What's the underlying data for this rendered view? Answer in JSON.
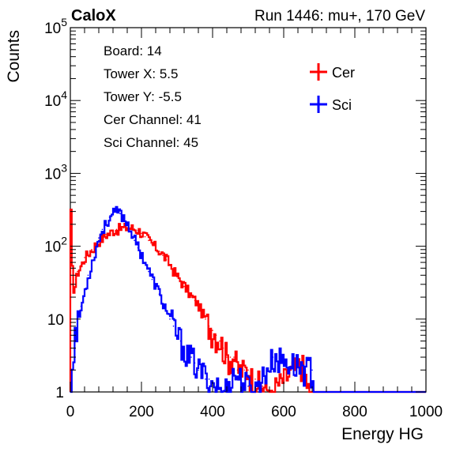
{
  "header": {
    "brand": "CaloX",
    "run_info": "Run 1446: mu+, 170 GeV"
  },
  "info_box": {
    "lines": [
      "Board: 14",
      "Tower X: 5.5",
      "Tower Y: -5.5",
      "Cer Channel: 41",
      "Sci Channel: 45"
    ]
  },
  "colors": {
    "cer": "#ff0000",
    "sci": "#0000ff",
    "axis": "#000000"
  },
  "chart_data": {
    "type": "line",
    "title": "",
    "xlabel": "Energy HG",
    "ylabel": "Counts",
    "xlim": [
      0,
      1000
    ],
    "ylim": [
      1,
      100000
    ],
    "yscale": "log",
    "xticks": [
      0,
      200,
      400,
      600,
      800,
      1000
    ],
    "xtick_labels": [
      "0",
      "200",
      "400",
      "600",
      "800",
      "1000"
    ],
    "yticks": [
      1,
      10,
      100,
      1000,
      10000,
      100000
    ],
    "ytick_labels": [
      {
        "base": "1",
        "exp": ""
      },
      {
        "base": "10",
        "exp": ""
      },
      {
        "base": "10",
        "exp": "2"
      },
      {
        "base": "10",
        "exp": "3"
      },
      {
        "base": "10",
        "exp": "4"
      },
      {
        "base": "10",
        "exp": "5"
      }
    ],
    "grid": false,
    "legend_position": "top-right",
    "series": [
      {
        "name": "Cer",
        "color": "#ff0000",
        "points": [
          [
            0,
            280
          ],
          [
            5,
            30
          ],
          [
            10,
            25
          ],
          [
            15,
            35
          ],
          [
            20,
            45
          ],
          [
            30,
            55
          ],
          [
            40,
            70
          ],
          [
            50,
            80
          ],
          [
            60,
            90
          ],
          [
            70,
            105
          ],
          [
            80,
            120
          ],
          [
            90,
            130
          ],
          [
            100,
            145
          ],
          [
            110,
            150
          ],
          [
            120,
            165
          ],
          [
            130,
            170
          ],
          [
            140,
            175
          ],
          [
            150,
            178
          ],
          [
            160,
            180
          ],
          [
            170,
            178
          ],
          [
            180,
            172
          ],
          [
            190,
            165
          ],
          [
            200,
            150
          ],
          [
            210,
            135
          ],
          [
            220,
            120
          ],
          [
            230,
            105
          ],
          [
            240,
            95
          ],
          [
            250,
            85
          ],
          [
            260,
            75
          ],
          [
            270,
            65
          ],
          [
            280,
            55
          ],
          [
            290,
            45
          ],
          [
            300,
            38
          ],
          [
            310,
            33
          ],
          [
            320,
            28
          ],
          [
            330,
            24
          ],
          [
            340,
            20
          ],
          [
            350,
            18
          ],
          [
            360,
            15
          ],
          [
            370,
            12
          ],
          [
            380,
            10
          ],
          [
            390,
            8
          ],
          [
            400,
            7
          ],
          [
            410,
            6
          ],
          [
            420,
            5
          ],
          [
            430,
            4
          ],
          [
            440,
            3
          ],
          [
            450,
            3
          ],
          [
            460,
            3
          ],
          [
            470,
            2
          ],
          [
            480,
            2
          ],
          [
            490,
            2
          ],
          [
            500,
            2
          ],
          [
            510,
            1.5
          ],
          [
            520,
            1.5
          ],
          [
            530,
            1.3
          ],
          [
            540,
            1.2
          ],
          [
            550,
            1.1
          ],
          [
            560,
            1
          ],
          [
            650,
            2.5
          ],
          [
            670,
            1
          ]
        ]
      },
      {
        "name": "Sci",
        "color": "#0000ff",
        "points": [
          [
            0,
            1
          ],
          [
            5,
            3
          ],
          [
            10,
            6
          ],
          [
            15,
            7
          ],
          [
            20,
            9
          ],
          [
            30,
            15
          ],
          [
            40,
            25
          ],
          [
            50,
            40
          ],
          [
            60,
            60
          ],
          [
            70,
            90
          ],
          [
            80,
            130
          ],
          [
            90,
            170
          ],
          [
            100,
            210
          ],
          [
            110,
            250
          ],
          [
            120,
            280
          ],
          [
            130,
            300
          ],
          [
            140,
            280
          ],
          [
            150,
            240
          ],
          [
            160,
            200
          ],
          [
            170,
            160
          ],
          [
            180,
            120
          ],
          [
            190,
            95
          ],
          [
            200,
            75
          ],
          [
            210,
            60
          ],
          [
            220,
            45
          ],
          [
            230,
            35
          ],
          [
            240,
            28
          ],
          [
            250,
            22
          ],
          [
            260,
            16
          ],
          [
            270,
            13
          ],
          [
            280,
            10
          ],
          [
            290,
            8
          ],
          [
            300,
            6
          ],
          [
            310,
            5
          ],
          [
            320,
            4
          ],
          [
            330,
            3
          ],
          [
            340,
            3
          ],
          [
            350,
            2.5
          ],
          [
            360,
            2
          ],
          [
            370,
            2
          ],
          [
            380,
            1.5
          ],
          [
            390,
            1.5
          ],
          [
            400,
            1.3
          ],
          [
            410,
            1.2
          ],
          [
            420,
            1.1
          ],
          [
            430,
            1
          ],
          [
            460,
            1.8
          ],
          [
            480,
            1.5
          ],
          [
            500,
            1.2
          ],
          [
            520,
            1.1
          ],
          [
            570,
            3
          ],
          [
            680,
            2
          ]
        ]
      }
    ]
  }
}
